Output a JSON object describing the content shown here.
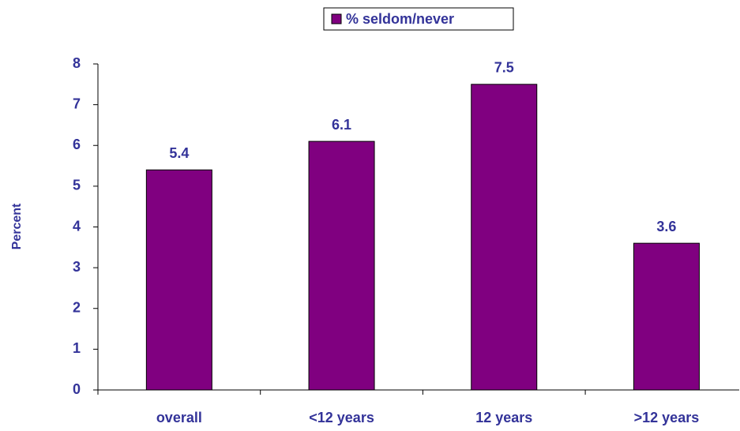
{
  "chart_data": {
    "type": "bar",
    "categories": [
      "overall",
      "<12 years",
      "12 years",
      ">12 years"
    ],
    "series": [
      {
        "name": "% seldom/never",
        "color": "#800080",
        "values": [
          5.4,
          6.1,
          7.5,
          3.6
        ]
      }
    ],
    "y_label": "Percent",
    "ylim": [
      0,
      8
    ],
    "yticks": [
      0,
      1,
      2,
      3,
      4,
      5,
      6,
      7,
      8
    ],
    "legend": "top",
    "data_labels": true
  }
}
